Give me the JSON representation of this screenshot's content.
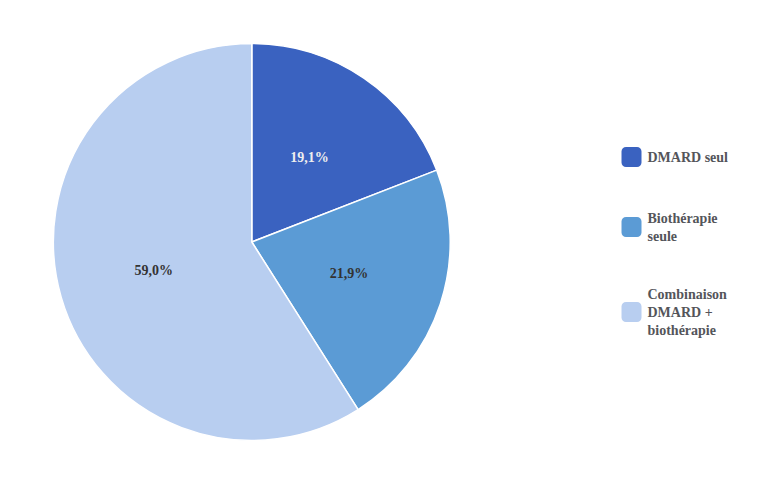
{
  "chart_data": {
    "type": "pie",
    "categories": [
      "DMARD seul",
      "Biothérapie\nseule",
      "Combinaison\nDMARD +\nbiothérapie"
    ],
    "values": [
      19.1,
      21.9,
      59.0
    ],
    "value_labels": [
      "19,1%",
      "21,9%",
      "59,0%"
    ],
    "colors": [
      "#3a62c0",
      "#5b9bd5",
      "#b8cef0"
    ],
    "data_labels": true,
    "legend": "right"
  }
}
